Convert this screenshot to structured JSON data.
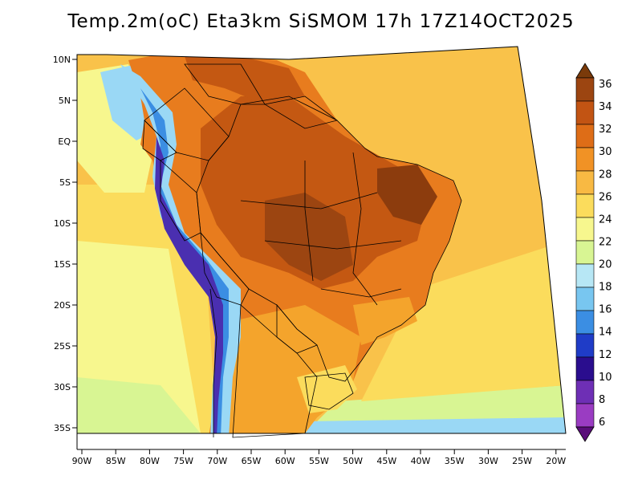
{
  "title": "Temp.2m(oC) Eta3km SiSMOM 17h 17Z14OCT2025",
  "lat_labels": [
    "10N",
    "5N",
    "EQ",
    "5S",
    "10S",
    "15S",
    "20S",
    "25S",
    "30S",
    "35S"
  ],
  "lon_labels": [
    "90W",
    "85W",
    "80W",
    "75W",
    "70W",
    "65W",
    "60W",
    "55W",
    "50W",
    "45W",
    "40W",
    "35W",
    "30W",
    "25W",
    "20W"
  ],
  "colorbar": {
    "labels": [
      "36",
      "34",
      "32",
      "30",
      "28",
      "26",
      "24",
      "22",
      "20",
      "18",
      "16",
      "14",
      "12",
      "10",
      "8",
      "6"
    ],
    "colors": [
      "#7a3a0a",
      "#9c4511",
      "#c25413",
      "#de6d17",
      "#f19225",
      "#f8b943",
      "#fbdc5c",
      "#f7f78e",
      "#d8f593",
      "#b7e7f5",
      "#78c6f0",
      "#3b8ee3",
      "#1f3cc7",
      "#2a0d8e",
      "#6e2fb5",
      "#9a3cc2",
      "#5a0d7a"
    ]
  },
  "palette": {
    "very_hot": "#8c3c0d",
    "hot": "#c45812",
    "warm": "#e87c1e",
    "mild": "#f4a42c",
    "ocean_warm": "#f9c24a",
    "ocean_mild": "#fbe06a",
    "cool": "#e8f48c",
    "cold": "#9ad8f5",
    "colder": "#4d9ee6",
    "andes": "#4a2fb0",
    "boundary": "#000000"
  }
}
